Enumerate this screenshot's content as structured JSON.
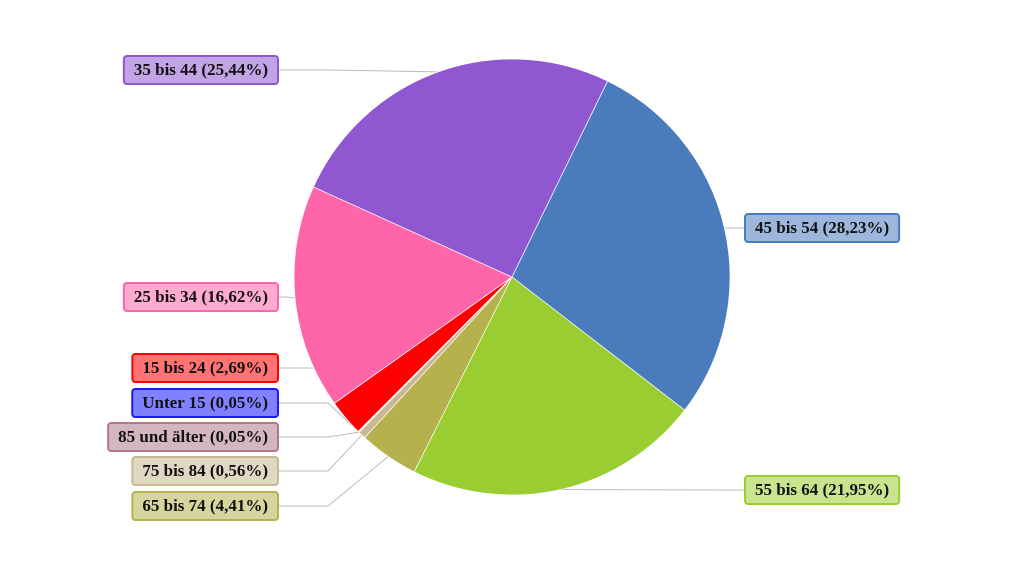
{
  "chart_data": {
    "type": "pie",
    "labels": [
      "45 bis 54 (28,23%)",
      "55 bis 64 (21,95%)",
      "65 bis 74 (4,41%)",
      "75 bis 84 (0,56%)",
      "85 und älter (0,05%)",
      "Unter 15 (0,05%)",
      "15 bis 24 (2,69%)",
      "25 bis 34 (16,62%)",
      "35 bis 44 (25,44%)"
    ],
    "values": [
      28.23,
      21.95,
      4.41,
      0.56,
      0.05,
      0.05,
      2.69,
      16.62,
      25.44
    ],
    "colors": [
      "#4a7bbd",
      "#9acd32",
      "#b5b24e",
      "#c8b894",
      "#b07890",
      "#1a1aff",
      "#ff0000",
      "#ff66aa",
      "#9058d0"
    ]
  }
}
